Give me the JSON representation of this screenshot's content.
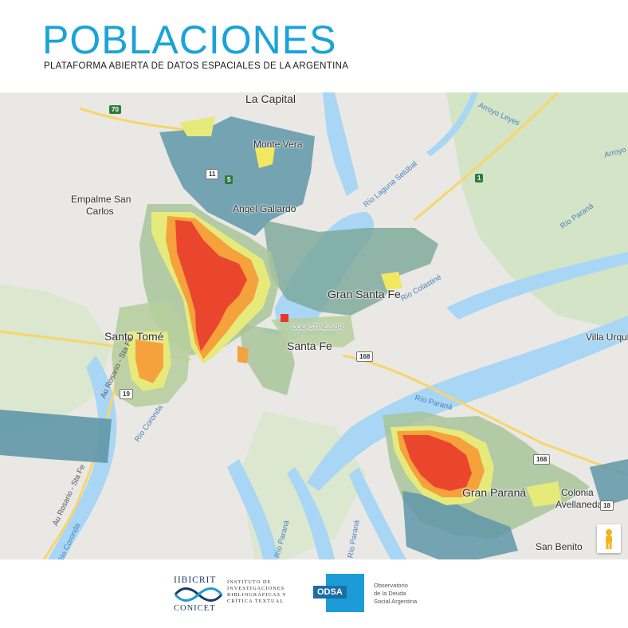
{
  "header": {
    "title": "POBLACIONES",
    "subtitle": "PLATAFORMA ABIERTA DE DATOS ESPACIALES DE LA ARGENTINA"
  },
  "map": {
    "cities": {
      "la_capital": "La Capital",
      "monte_vera": "Monte Vera",
      "empalme_1": "Empalme San",
      "empalme_2": "Carlos",
      "angel_gallardo": "Angel Gallardo",
      "gran_santa_fe": "Gran Santa Fe",
      "santo_tome": "Santo Tomé",
      "santa_fe": "Santa Fe",
      "colastine_sur": "COLASTINÉ SUR",
      "villa_urquiza": "Villa Urqui",
      "gran_parana": "Gran Paraná",
      "colonia_1": "Colonia",
      "colonia_2": "Avellaneda",
      "san_benito": "San Benito"
    },
    "rivers": {
      "arroyo_leyes": "Arroyo Leyes",
      "arroyo_right": "Arroyo",
      "laguna_setubal": "Río Laguna Setúbal",
      "rio_parana_ne": "Río Paraná",
      "rio_colastine": "Río Colastiné",
      "rio_parana_mid": "Río Paraná",
      "rio_coronda_1": "Río Coronda",
      "rio_coronda_2": "Río Coronda",
      "rio_parana_s": "Río Paraná",
      "rio_parana_s2": "Río Paraná",
      "au_rosario": "Au Rosario - Sta Fe",
      "au_rosario2": "Au Rosario - Sta Fe"
    },
    "routes": {
      "r70": "70",
      "r5": "5",
      "r11": "11",
      "r1": "1",
      "r168a": "168",
      "r168b": "168",
      "r18": "18",
      "r19": "19"
    },
    "colors": {
      "water": "#a9d6f5",
      "land": "#e9e8e4",
      "green": "#cfe3c2",
      "road": "#f7d56b",
      "blue_poly": "#5f97a8",
      "heat_low": "#e6ea7a",
      "heat_mid": "#f5a13c",
      "heat_high": "#e7362b"
    },
    "pegman_icon": "pegman-icon"
  },
  "footer": {
    "iib_top": "IIBICRIT",
    "iib_bottom": "CONICET",
    "iib_line1": "INSTITUTO DE",
    "iib_line2": "INVESTIGACIONES",
    "iib_line3": "BIBLIOGRÁFICAS Y",
    "iib_line4": "CRÍTICA TEXTUAL",
    "odsa_mark": "ODSA",
    "odsa_line1": "Observatorio",
    "odsa_line2": "de la Deuda",
    "odsa_line3": "Social Argentina"
  }
}
